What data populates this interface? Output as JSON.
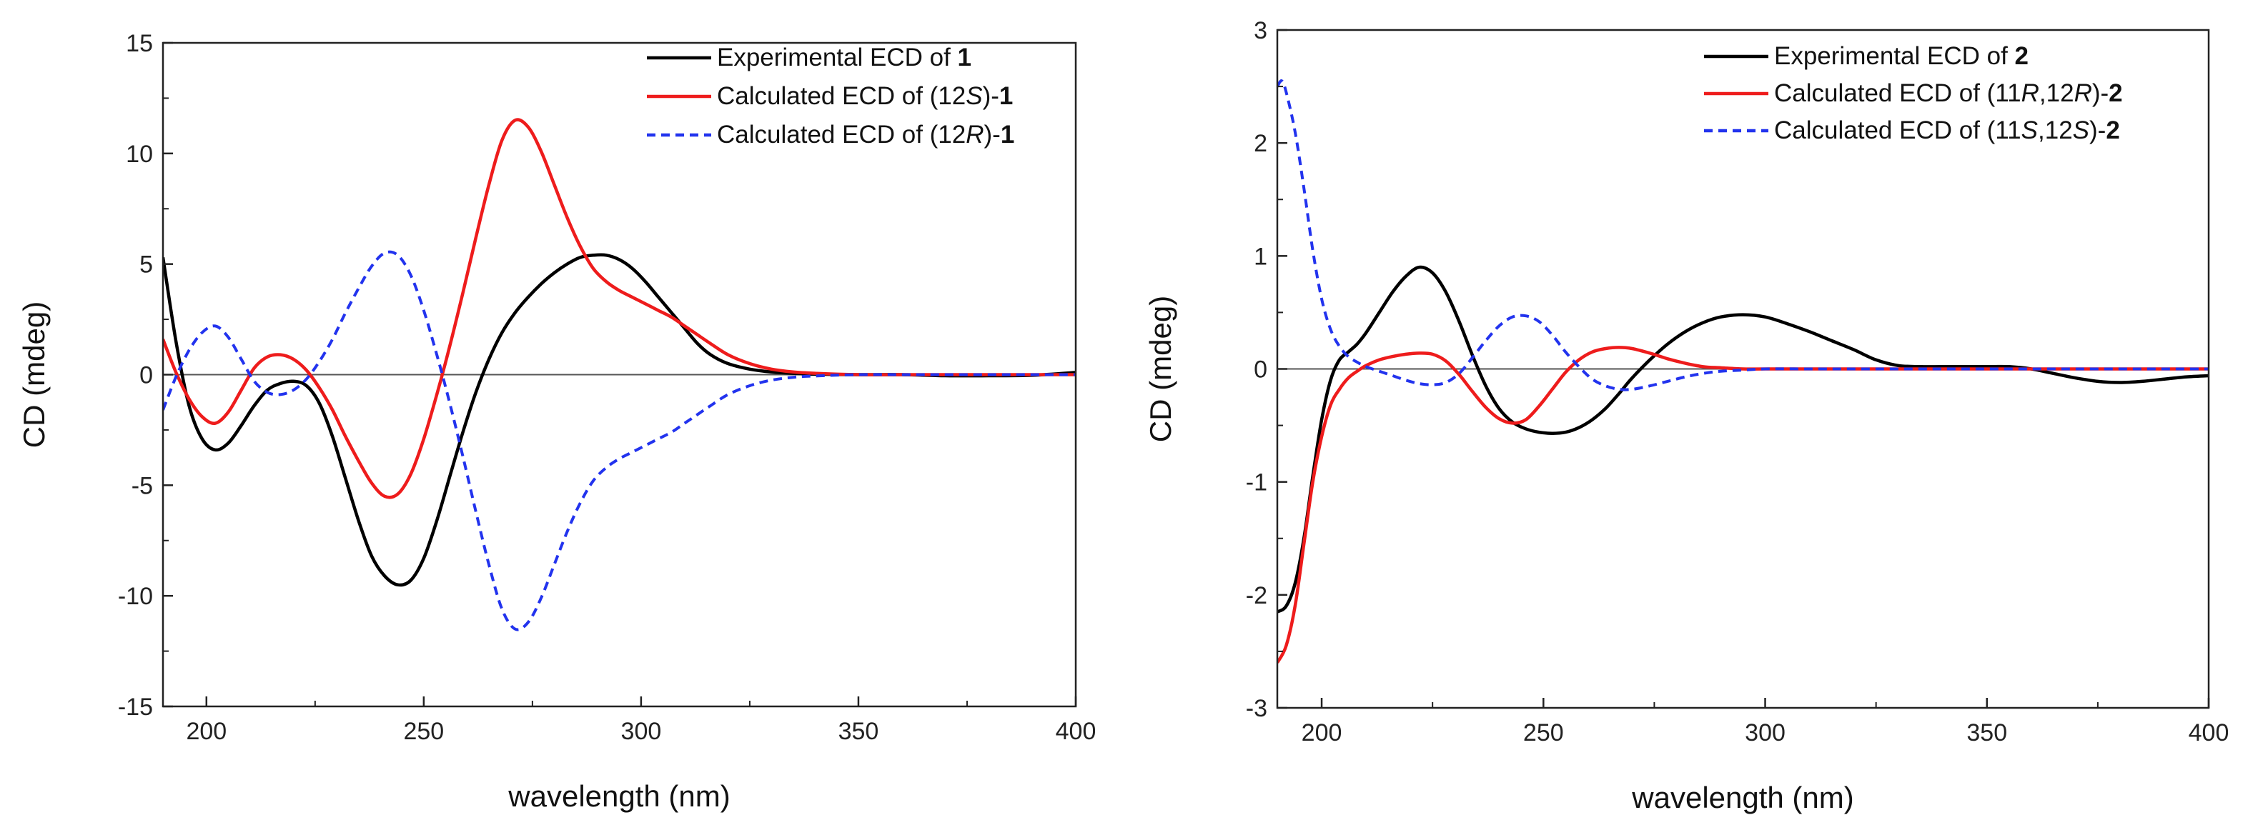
{
  "chart_data": [
    {
      "type": "line",
      "xlabel": "wavelength (nm)",
      "ylabel": "CD (mdeg)",
      "xlim": [
        190,
        400
      ],
      "ylim": [
        -15,
        15
      ],
      "xticks": [
        200,
        250,
        300,
        350,
        400
      ],
      "yticks": [
        -15,
        -10,
        -5,
        0,
        5,
        10,
        15
      ],
      "xtick_labels": [
        "200",
        "250",
        "300",
        "350",
        "400"
      ],
      "ytick_labels": [
        "-15",
        "-10",
        "-5",
        "0",
        "5",
        "10",
        "15"
      ],
      "zero_line": true,
      "legend_position": "top-right",
      "series": [
        {
          "name": "Experimental ECD of 1",
          "legend": [
            {
              "t": "Experimental ECD of ",
              "b": false
            },
            {
              "t": "1",
              "b": true
            }
          ],
          "color": "#000000",
          "dash": "solid",
          "x": [
            190,
            193,
            196,
            199,
            202,
            205,
            208,
            211,
            214,
            217,
            220,
            223,
            226,
            229,
            232,
            235,
            238,
            241,
            244,
            247,
            250,
            253,
            256,
            259,
            262,
            265,
            268,
            271,
            274,
            277,
            280,
            283,
            286,
            289,
            292,
            295,
            298,
            301,
            304,
            307,
            310,
            313,
            316,
            320,
            325,
            330,
            335,
            340,
            350,
            360,
            370,
            380,
            390,
            400
          ],
          "y": [
            5.3,
            1.5,
            -1.4,
            -2.9,
            -3.4,
            -3.1,
            -2.3,
            -1.4,
            -0.7,
            -0.4,
            -0.3,
            -0.5,
            -1.3,
            -2.8,
            -4.7,
            -6.6,
            -8.2,
            -9.1,
            -9.5,
            -9.3,
            -8.3,
            -6.6,
            -4.6,
            -2.6,
            -0.8,
            0.7,
            1.9,
            2.8,
            3.5,
            4.1,
            4.6,
            5.0,
            5.3,
            5.4,
            5.4,
            5.2,
            4.8,
            4.2,
            3.5,
            2.8,
            2.1,
            1.4,
            0.9,
            0.5,
            0.25,
            0.12,
            0.06,
            0.02,
            0,
            0,
            -0.05,
            -0.05,
            -0.03,
            0.1
          ]
        },
        {
          "name": "Calculated ECD of (12S)-1",
          "legend": [
            {
              "t": "Calculated ECD of (12",
              "b": false
            },
            {
              "t": "S",
              "b": false,
              "i": true
            },
            {
              "t": ")-",
              "b": false
            },
            {
              "t": "1",
              "b": true
            }
          ],
          "color": "#ee1c1c",
          "dash": "solid",
          "x": [
            190,
            193,
            196,
            199,
            202,
            205,
            208,
            211,
            214,
            217,
            220,
            223,
            226,
            229,
            232,
            235,
            238,
            241,
            244,
            247,
            250,
            253,
            256,
            259,
            262,
            265,
            268,
            271,
            274,
            277,
            280,
            283,
            286,
            289,
            292,
            295,
            298,
            301,
            304,
            307,
            310,
            313,
            316,
            320,
            325,
            330,
            335,
            340,
            350,
            360,
            370,
            380,
            390,
            400
          ],
          "y": [
            1.6,
            0.1,
            -1.1,
            -1.9,
            -2.2,
            -1.7,
            -0.7,
            0.3,
            0.8,
            0.9,
            0.7,
            0.2,
            -0.6,
            -1.6,
            -2.8,
            -3.9,
            -4.9,
            -5.5,
            -5.4,
            -4.5,
            -2.9,
            -0.9,
            1.3,
            3.7,
            6.2,
            8.6,
            10.6,
            11.5,
            11.2,
            10.1,
            8.6,
            7.1,
            5.8,
            4.8,
            4.2,
            3.8,
            3.5,
            3.2,
            2.9,
            2.6,
            2.2,
            1.8,
            1.4,
            0.9,
            0.5,
            0.25,
            0.12,
            0.06,
            0,
            0,
            0,
            0,
            0,
            0
          ]
        },
        {
          "name": "Calculated ECD of (12R)-1",
          "legend": [
            {
              "t": "Calculated ECD of (12",
              "b": false
            },
            {
              "t": "R",
              "b": false,
              "i": true
            },
            {
              "t": ")-",
              "b": false
            },
            {
              "t": "1",
              "b": true
            }
          ],
          "color": "#2233ee",
          "dash": "dashed",
          "x": [
            190,
            193,
            196,
            199,
            202,
            205,
            208,
            211,
            214,
            217,
            220,
            223,
            226,
            229,
            232,
            235,
            238,
            241,
            244,
            247,
            250,
            253,
            256,
            259,
            262,
            265,
            268,
            271,
            274,
            277,
            280,
            283,
            286,
            289,
            292,
            295,
            298,
            301,
            304,
            307,
            310,
            313,
            316,
            320,
            325,
            330,
            335,
            340,
            350,
            360,
            370,
            380,
            390,
            400
          ],
          "y": [
            -1.6,
            -0.1,
            1.1,
            1.9,
            2.2,
            1.7,
            0.7,
            -0.3,
            -0.8,
            -0.9,
            -0.7,
            -0.2,
            0.6,
            1.6,
            2.8,
            3.9,
            4.9,
            5.5,
            5.4,
            4.5,
            2.9,
            0.9,
            -1.3,
            -3.7,
            -6.2,
            -8.6,
            -10.6,
            -11.5,
            -11.2,
            -10.1,
            -8.6,
            -7.1,
            -5.8,
            -4.8,
            -4.2,
            -3.8,
            -3.5,
            -3.2,
            -2.9,
            -2.6,
            -2.2,
            -1.8,
            -1.4,
            -0.9,
            -0.5,
            -0.25,
            -0.12,
            -0.06,
            0,
            0,
            0,
            0,
            0,
            0
          ]
        }
      ]
    },
    {
      "type": "line",
      "xlabel": "wavelength (nm)",
      "ylabel": "CD (mdeg)",
      "xlim": [
        190,
        400
      ],
      "ylim": [
        -3,
        3
      ],
      "xticks": [
        200,
        250,
        300,
        350,
        400
      ],
      "yticks": [
        -3,
        -2,
        -1,
        0,
        1,
        2,
        3
      ],
      "xtick_labels": [
        "200",
        "250",
        "300",
        "350",
        "400"
      ],
      "ytick_labels": [
        "-3",
        "-2",
        "-1",
        "0",
        "1",
        "2",
        "3"
      ],
      "zero_line": true,
      "legend_position": "top-right",
      "series": [
        {
          "name": "Experimental ECD of 2",
          "legend": [
            {
              "t": "Experimental ECD of ",
              "b": false
            },
            {
              "t": "2",
              "b": true
            }
          ],
          "color": "#000000",
          "dash": "solid",
          "x": [
            190,
            192,
            194,
            196,
            198,
            200,
            202,
            204,
            206,
            208,
            210,
            213,
            216,
            219,
            222,
            225,
            228,
            231,
            234,
            237,
            240,
            243,
            246,
            249,
            252,
            255,
            258,
            261,
            264,
            267,
            270,
            274,
            278,
            282,
            286,
            290,
            295,
            300,
            305,
            310,
            315,
            320,
            325,
            330,
            335,
            340,
            345,
            350,
            355,
            360,
            365,
            370,
            375,
            380,
            385,
            390,
            395,
            400
          ],
          "y": [
            -2.15,
            -2.1,
            -1.9,
            -1.5,
            -0.95,
            -0.45,
            -0.1,
            0.08,
            0.15,
            0.22,
            0.32,
            0.5,
            0.68,
            0.82,
            0.9,
            0.85,
            0.68,
            0.42,
            0.12,
            -0.15,
            -0.35,
            -0.47,
            -0.53,
            -0.56,
            -0.57,
            -0.56,
            -0.52,
            -0.45,
            -0.35,
            -0.22,
            -0.08,
            0.08,
            0.22,
            0.33,
            0.41,
            0.46,
            0.48,
            0.46,
            0.4,
            0.33,
            0.25,
            0.17,
            0.08,
            0.03,
            0.02,
            0.02,
            0.02,
            0.02,
            0.02,
            0,
            -0.04,
            -0.08,
            -0.11,
            -0.12,
            -0.11,
            -0.09,
            -0.07,
            -0.06
          ]
        },
        {
          "name": "Calculated ECD of (11R,12R)-2",
          "legend": [
            {
              "t": "Calculated ECD of (",
              "b": false
            },
            {
              "t": "11",
              "b": false
            },
            {
              "t": "R",
              "b": false,
              "i": true
            },
            {
              "t": ",12",
              "b": false
            },
            {
              "t": "R",
              "b": false,
              "i": true
            },
            {
              "t": ")-",
              "b": false
            },
            {
              "t": "2",
              "b": true
            }
          ],
          "color": "#ee1c1c",
          "dash": "solid",
          "x": [
            190,
            192,
            194,
            196,
            198,
            200,
            202,
            204,
            206,
            208,
            210,
            213,
            216,
            219,
            222,
            225,
            228,
            231,
            234,
            237,
            240,
            243,
            246,
            249,
            252,
            255,
            258,
            261,
            264,
            267,
            270,
            274,
            278,
            282,
            286,
            290,
            295,
            300,
            310,
            320,
            330,
            340,
            350,
            360,
            370,
            380,
            390,
            400
          ],
          "y": [
            -2.6,
            -2.45,
            -2.1,
            -1.55,
            -1.0,
            -0.6,
            -0.32,
            -0.18,
            -0.08,
            -0.02,
            0.03,
            0.08,
            0.11,
            0.13,
            0.14,
            0.13,
            0.07,
            -0.05,
            -0.2,
            -0.34,
            -0.44,
            -0.48,
            -0.45,
            -0.33,
            -0.18,
            -0.03,
            0.08,
            0.15,
            0.18,
            0.19,
            0.18,
            0.14,
            0.09,
            0.05,
            0.02,
            0.01,
            0,
            0,
            0,
            0,
            0,
            0,
            0,
            0,
            0,
            0,
            0,
            0
          ]
        },
        {
          "name": "Calculated ECD of (11S,12S)-2",
          "legend": [
            {
              "t": "Calculated ECD of (",
              "b": false
            },
            {
              "t": "11",
              "b": false
            },
            {
              "t": "S",
              "b": false,
              "i": true
            },
            {
              "t": ",12",
              "b": false
            },
            {
              "t": "S",
              "b": false,
              "i": true
            },
            {
              "t": ")-",
              "b": false
            },
            {
              "t": "2",
              "b": true
            }
          ],
          "color": "#2233ee",
          "dash": "dashed",
          "x": [
            190,
            191,
            192,
            194,
            196,
            198,
            200,
            202,
            204,
            206,
            208,
            210,
            213,
            216,
            219,
            222,
            225,
            228,
            231,
            234,
            237,
            240,
            243,
            246,
            249,
            252,
            255,
            258,
            261,
            264,
            267,
            270,
            274,
            278,
            282,
            286,
            290,
            295,
            300,
            310,
            320,
            330,
            340,
            350,
            360,
            370,
            380,
            390,
            400
          ],
          "y": [
            2.5,
            2.55,
            2.45,
            2.1,
            1.6,
            1.05,
            0.62,
            0.35,
            0.2,
            0.11,
            0.06,
            0.02,
            -0.02,
            -0.06,
            -0.1,
            -0.13,
            -0.14,
            -0.12,
            -0.04,
            0.1,
            0.25,
            0.38,
            0.46,
            0.47,
            0.42,
            0.3,
            0.15,
            0.02,
            -0.09,
            -0.15,
            -0.18,
            -0.18,
            -0.15,
            -0.11,
            -0.07,
            -0.04,
            -0.02,
            -0.01,
            0,
            0,
            0,
            0,
            0,
            0,
            0,
            0,
            0,
            0,
            0
          ]
        }
      ]
    }
  ]
}
